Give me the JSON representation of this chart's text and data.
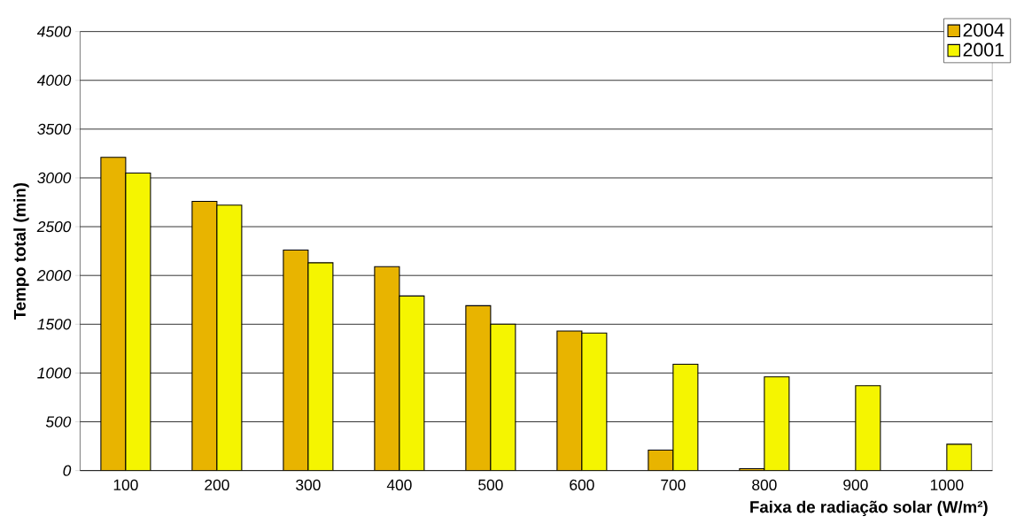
{
  "chart_data": {
    "type": "bar",
    "xlabel": "Faixa de radiação solar (W/m²)",
    "ylabel": "Tempo total (min)",
    "categories": [
      "100",
      "200",
      "300",
      "400",
      "500",
      "600",
      "700",
      "800",
      "900",
      "1000"
    ],
    "series": [
      {
        "name": "2004",
        "color": "#e8b400",
        "values": [
          3210,
          2760,
          2260,
          2090,
          1690,
          1430,
          210,
          20,
          null,
          null
        ]
      },
      {
        "name": "2001",
        "color": "#f5f500",
        "values": [
          3050,
          2720,
          2130,
          1790,
          1500,
          1410,
          1090,
          960,
          870,
          270
        ]
      }
    ],
    "ylim": [
      0,
      4500
    ],
    "yticks": [
      0,
      500,
      1000,
      1500,
      2000,
      2500,
      3000,
      3500,
      4000,
      4500
    ],
    "grid": "y",
    "legend": "top right"
  }
}
